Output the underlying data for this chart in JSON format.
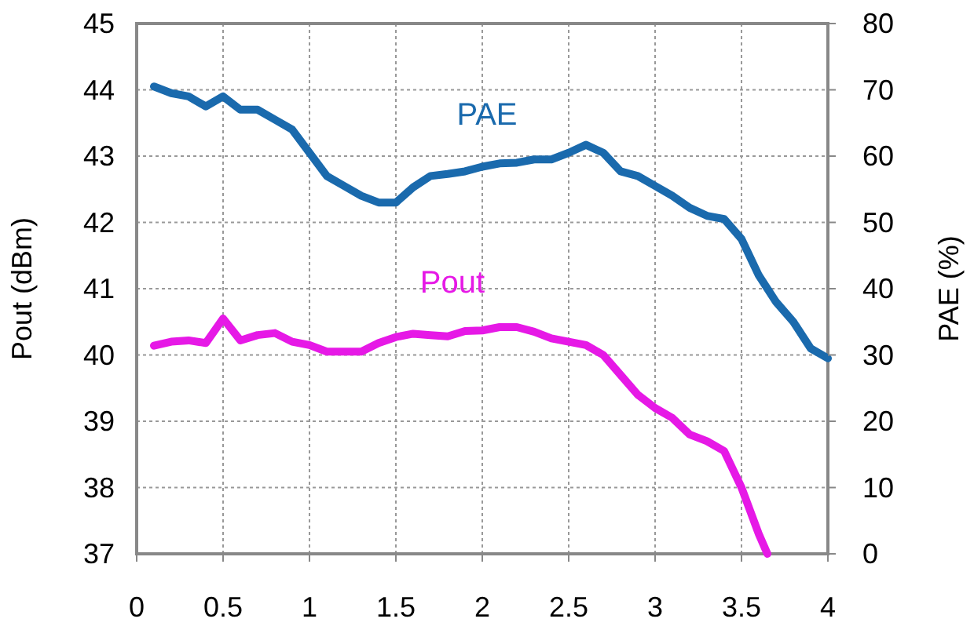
{
  "chart_data": {
    "type": "line",
    "ylabel": "Pout (dBm)",
    "y2label": "PAE (%)",
    "xlim": [
      0,
      4
    ],
    "xticks": [
      0,
      0.5,
      1,
      1.5,
      2,
      2.5,
      3,
      3.5,
      4
    ],
    "ylim": [
      37,
      45
    ],
    "yticks": [
      37,
      38,
      39,
      40,
      41,
      42,
      43,
      44,
      45
    ],
    "y2lim": [
      0,
      80
    ],
    "y2ticks": [
      0,
      10,
      20,
      30,
      40,
      50,
      60,
      70,
      80
    ],
    "grid": true,
    "marker": "none",
    "line_style": "solid",
    "series": [
      {
        "name": "PAE",
        "color": "#1a6aad",
        "axis": "y2",
        "x": [
          0.1,
          0.2,
          0.3,
          0.4,
          0.5,
          0.6,
          0.7,
          0.8,
          0.9,
          1.0,
          1.1,
          1.2,
          1.3,
          1.4,
          1.5,
          1.6,
          1.7,
          1.8,
          1.9,
          2.0,
          2.1,
          2.2,
          2.3,
          2.4,
          2.5,
          2.6,
          2.7,
          2.8,
          2.9,
          3.0,
          3.1,
          3.2,
          3.3,
          3.4,
          3.5,
          3.6,
          3.7,
          3.8,
          3.9,
          4.0
        ],
        "values": [
          70.5,
          69.5,
          69,
          67.5,
          69,
          67,
          67,
          65.5,
          64,
          60.5,
          57,
          55.5,
          54,
          53,
          53,
          55.3,
          57,
          57.3,
          57.7,
          58.4,
          58.9,
          59,
          59.5,
          59.5,
          60.5,
          61.7,
          60.5,
          57.7,
          57,
          55.5,
          54,
          52.2,
          51,
          50.5,
          47.5,
          42,
          38,
          35,
          31,
          29.5
        ]
      },
      {
        "name": "Pout",
        "color": "#e619e6",
        "x": [
          0.1,
          0.2,
          0.3,
          0.4,
          0.5,
          0.6,
          0.7,
          0.8,
          0.9,
          1.0,
          1.1,
          1.2,
          1.3,
          1.4,
          1.5,
          1.6,
          1.7,
          1.8,
          1.9,
          2.0,
          2.1,
          2.2,
          2.3,
          2.4,
          2.5,
          2.6,
          2.7,
          2.8,
          2.9,
          3.0,
          3.1,
          3.2,
          3.3,
          3.4,
          3.5,
          3.6,
          3.65
        ],
        "values": [
          40.14,
          40.2,
          40.22,
          40.18,
          40.55,
          40.22,
          40.3,
          40.33,
          40.2,
          40.15,
          40.05,
          40.05,
          40.05,
          40.18,
          40.27,
          40.32,
          40.3,
          40.28,
          40.36,
          40.37,
          40.42,
          40.42,
          40.35,
          40.25,
          40.2,
          40.15,
          40.0,
          39.7,
          39.4,
          39.2,
          39.05,
          38.8,
          38.7,
          38.55,
          38.0,
          37.3,
          37
        ]
      }
    ]
  }
}
